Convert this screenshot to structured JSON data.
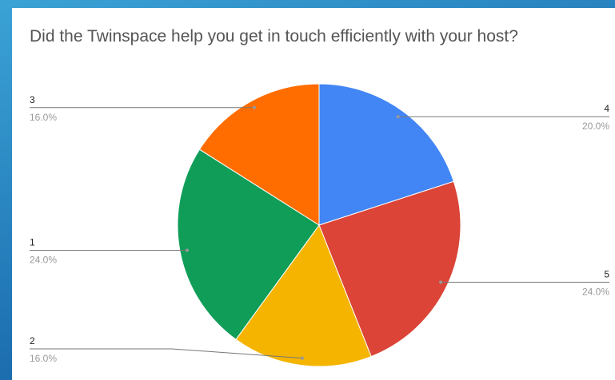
{
  "chart_data": {
    "type": "pie",
    "title": "Did the Twinspace help you get in touch efficiently with your host?",
    "categories": [
      "4",
      "5",
      "2",
      "1",
      "3"
    ],
    "values": [
      20,
      24,
      16,
      24,
      16
    ],
    "value_labels": [
      "20.0%",
      "24.0%",
      "16.0%",
      "24.0%",
      "16.0%"
    ],
    "colors": [
      "#4285f4",
      "#db4437",
      "#f4b400",
      "#0f9d58",
      "#ff6d00"
    ]
  }
}
